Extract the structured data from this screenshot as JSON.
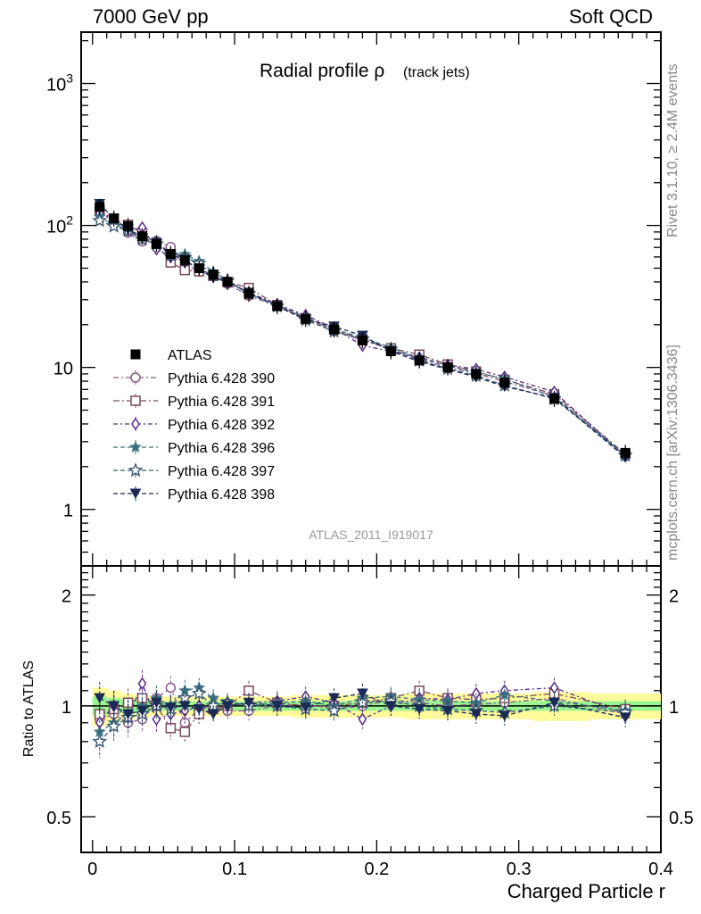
{
  "header": {
    "left": "7000 GeV pp",
    "right": "Soft QCD",
    "side_top": "Rivet 3.1.10, ≥ 2.4M events",
    "side_bottom": "mcplots.cern.ch [arXiv:1306.3436]"
  },
  "chart_data": {
    "type": "line",
    "title": "Radial profile ρ",
    "title_suffix": "(track jets)",
    "watermark": "ATLAS_2011_I919017",
    "xlabel": "Charged Particle r",
    "ylabel": "",
    "ratio_ylabel": "Ratio to ATLAS",
    "xlim": [
      -0.008,
      0.4
    ],
    "ylim": [
      0.4,
      2300
    ],
    "yscale": "log",
    "ratio_ylim": [
      0.4,
      2.4
    ],
    "x_ticks": [
      "0",
      "0.1",
      "0.2",
      "0.3",
      "0.4"
    ],
    "y_ticks": [
      "1",
      "10",
      "10²",
      "10³"
    ],
    "ratio_y_ticks": [
      "0.5",
      "1",
      "2"
    ],
    "legend_position": "left-middle",
    "x": [
      0.005,
      0.015,
      0.025,
      0.035,
      0.045,
      0.055,
      0.065,
      0.075,
      0.085,
      0.095,
      0.11,
      0.13,
      0.15,
      0.17,
      0.19,
      0.21,
      0.23,
      0.25,
      0.27,
      0.29,
      0.325,
      0.375
    ],
    "data": {
      "name": "ATLAS",
      "values": [
        135,
        112,
        99,
        84,
        74,
        63,
        57,
        50,
        45,
        40,
        33,
        27,
        22,
        18.5,
        15.5,
        13,
        11.2,
        10,
        9,
        7.8,
        6,
        2.5
      ],
      "ratio_band_inner": [
        0.06,
        0.05,
        0.04,
        0.04,
        0.03,
        0.03,
        0.03,
        0.03,
        0.03,
        0.03,
        0.03,
        0.03,
        0.03,
        0.03,
        0.03,
        0.03,
        0.03,
        0.03,
        0.03,
        0.03,
        0.03,
        0.03
      ],
      "ratio_band_outer": [
        0.12,
        0.1,
        0.08,
        0.07,
        0.06,
        0.06,
        0.06,
        0.06,
        0.06,
        0.06,
        0.06,
        0.06,
        0.07,
        0.07,
        0.07,
        0.07,
        0.08,
        0.08,
        0.08,
        0.08,
        0.09,
        0.08
      ]
    },
    "series": [
      {
        "name": "Pythia 6.428 390",
        "color": "#8a5a8a",
        "marker": "circle-open",
        "dash": "6,3,2,3",
        "ratio": [
          0.92,
          0.95,
          0.9,
          0.92,
          1.05,
          1.12,
          0.9,
          0.98,
          1.0,
          0.97,
          0.97,
          1.0,
          1.01,
          0.98,
          1.0,
          1.04,
          1.02,
          1.0,
          1.01,
          1.02,
          1.05,
          0.95
        ]
      },
      {
        "name": "Pythia 6.428 391",
        "color": "#7a4a5a",
        "marker": "square-open",
        "dash": "7,3,2,3",
        "ratio": [
          0.95,
          0.98,
          1.02,
          1.05,
          1.0,
          0.87,
          0.85,
          0.95,
          0.98,
          1.0,
          1.1,
          1.02,
          1.0,
          1.0,
          1.02,
          1.05,
          1.1,
          1.05,
          1.04,
          1.05,
          1.08,
          0.98
        ]
      },
      {
        "name": "Pythia 6.428 392",
        "color": "#5a2a8a",
        "marker": "diamond-open",
        "dash": "5,3,2,3",
        "ratio": [
          0.9,
          1.0,
          0.93,
          1.15,
          0.92,
          0.95,
          0.97,
          1.0,
          0.97,
          1.0,
          1.02,
          1.03,
          1.06,
          1.02,
          0.92,
          1.0,
          1.05,
          1.04,
          1.08,
          1.1,
          1.12,
          0.95
        ]
      },
      {
        "name": "Pythia 6.428 396",
        "color": "#3a7080",
        "marker": "star-filled",
        "dash": "5,3",
        "ratio": [
          0.85,
          0.9,
          0.95,
          1.0,
          1.05,
          1.0,
          1.1,
          1.12,
          1.05,
          1.03,
          1.0,
          1.02,
          1.03,
          1.0,
          1.05,
          1.06,
          1.04,
          1.03,
          1.02,
          1.07,
          1.03,
          0.97
        ]
      },
      {
        "name": "Pythia 6.428 397",
        "color": "#3a5a70",
        "marker": "star-open",
        "dash": "5,3",
        "ratio": [
          0.8,
          0.88,
          0.93,
          0.95,
          1.0,
          0.98,
          1.05,
          1.08,
          1.0,
          1.02,
          1.0,
          1.0,
          0.98,
          0.97,
          1.02,
          1.03,
          1.0,
          0.98,
          0.97,
          0.96,
          1.0,
          0.96
        ]
      },
      {
        "name": "Pythia 6.428 398",
        "color": "#1a2a55",
        "marker": "triangle-down-filled",
        "dash": "5,3",
        "ratio": [
          1.05,
          1.0,
          0.95,
          0.97,
          1.02,
          0.99,
          1.0,
          0.98,
          0.95,
          1.0,
          1.02,
          1.0,
          0.99,
          1.05,
          1.08,
          1.0,
          0.98,
          0.97,
          0.95,
          0.94,
          1.02,
          0.93
        ]
      }
    ]
  }
}
